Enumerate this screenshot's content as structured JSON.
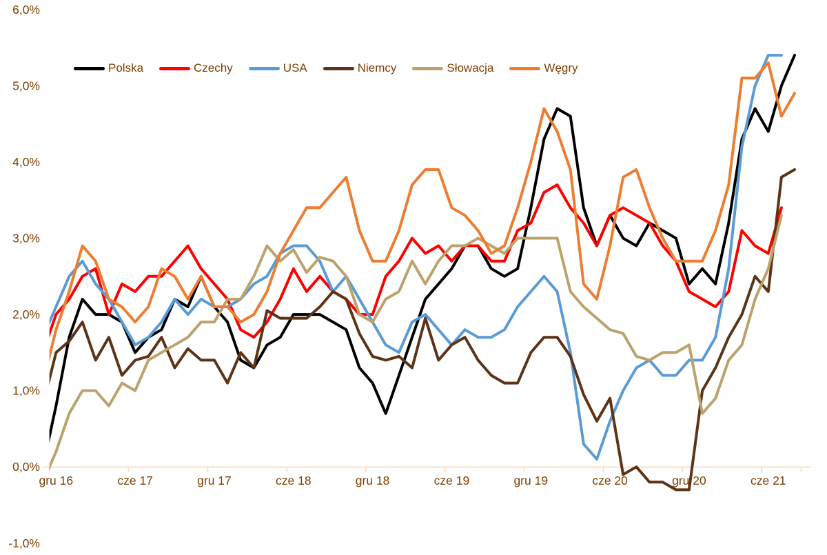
{
  "chart_data": {
    "type": "line",
    "title": "",
    "subtitle": "",
    "unit": "%",
    "grid": "off",
    "background": "#ffffff",
    "legend_position": "top-left-horizontal",
    "y_axis": {
      "min": -1.0,
      "max": 6.0,
      "tick_values": [
        6,
        5,
        4,
        3,
        2,
        1,
        0,
        -1
      ],
      "tick_labels": [
        "6,0%",
        "5,0%",
        "4,0%",
        "3,0%",
        "2,0%",
        "1,0%",
        "0,0%",
        "-1,0%"
      ]
    },
    "x_axis": {
      "tick_labels": [
        "gru 16",
        "cze 17",
        "gru 17",
        "cze 18",
        "gru 18",
        "cze 19",
        "gru 19",
        "cze 20",
        "gru 20",
        "cze 21"
      ],
      "months_per_point": 1,
      "points_per_labelled_tick": 6,
      "first_point_month": "lis 16",
      "last_point_month": "sie 21"
    },
    "series": [
      {
        "id": "polska",
        "name": "Polska",
        "color": "#000000",
        "values": [
          0.0,
          0.8,
          1.7,
          2.2,
          2.0,
          2.0,
          1.9,
          1.5,
          1.7,
          1.8,
          2.2,
          2.1,
          2.5,
          2.1,
          1.9,
          1.4,
          1.3,
          1.6,
          1.7,
          2.0,
          2.0,
          2.0,
          1.9,
          1.8,
          1.3,
          1.1,
          0.7,
          1.2,
          1.7,
          2.2,
          2.4,
          2.6,
          2.9,
          2.9,
          2.6,
          2.5,
          2.6,
          3.4,
          4.3,
          4.7,
          4.6,
          3.4,
          2.9,
          3.3,
          3.0,
          2.9,
          3.2,
          3.1,
          3.0,
          2.4,
          2.6,
          2.4,
          3.2,
          4.3,
          4.7,
          4.4,
          5.0,
          5.4
        ]
      },
      {
        "id": "czechy",
        "name": "Czechy",
        "color": "#FF0000",
        "values": [
          1.5,
          2.0,
          2.2,
          2.5,
          2.6,
          2.0,
          2.4,
          2.3,
          2.5,
          2.5,
          2.7,
          2.9,
          2.6,
          2.4,
          2.2,
          1.8,
          1.7,
          1.9,
          2.2,
          2.6,
          2.3,
          2.5,
          2.3,
          2.2,
          2.0,
          2.0,
          2.5,
          2.7,
          3.0,
          2.8,
          2.9,
          2.7,
          2.9,
          2.9,
          2.7,
          2.7,
          3.1,
          3.2,
          3.6,
          3.7,
          3.4,
          3.2,
          2.9,
          3.3,
          3.4,
          3.3,
          3.2,
          2.9,
          2.7,
          2.3,
          2.2,
          2.1,
          2.3,
          3.1,
          2.9,
          2.8,
          3.4,
          null
        ]
      },
      {
        "id": "usa",
        "name": "USA",
        "color": "#5B9BD5",
        "values": [
          1.7,
          2.1,
          2.5,
          2.7,
          2.4,
          2.2,
          1.9,
          1.6,
          1.7,
          1.9,
          2.2,
          2.0,
          2.2,
          2.1,
          2.1,
          2.2,
          2.4,
          2.5,
          2.8,
          2.9,
          2.9,
          2.7,
          2.3,
          2.5,
          2.2,
          1.9,
          1.6,
          1.5,
          1.9,
          2.0,
          1.8,
          1.6,
          1.8,
          1.7,
          1.7,
          1.8,
          2.1,
          2.3,
          2.5,
          2.3,
          1.5,
          0.3,
          0.1,
          0.6,
          1.0,
          1.3,
          1.4,
          1.2,
          1.2,
          1.4,
          1.4,
          1.7,
          2.6,
          4.2,
          5.0,
          5.4,
          5.4,
          null
        ]
      },
      {
        "id": "niemcy",
        "name": "Niemcy",
        "color": "#5C3317",
        "values": [
          0.8,
          1.5,
          1.65,
          1.9,
          1.4,
          1.7,
          1.2,
          1.4,
          1.45,
          1.7,
          1.3,
          1.55,
          1.4,
          1.4,
          1.1,
          1.5,
          1.3,
          2.05,
          1.95,
          1.95,
          1.95,
          2.1,
          2.3,
          2.2,
          1.75,
          1.45,
          1.4,
          1.45,
          1.3,
          1.95,
          1.4,
          1.6,
          1.7,
          1.4,
          1.2,
          1.1,
          1.1,
          1.5,
          1.7,
          1.7,
          1.45,
          0.95,
          0.6,
          0.9,
          -0.1,
          0.0,
          -0.2,
          -0.2,
          -0.3,
          -0.3,
          1.0,
          1.3,
          1.7,
          2.0,
          2.5,
          2.3,
          3.8,
          3.9
        ]
      },
      {
        "id": "slowacja",
        "name": "Słowacja",
        "color": "#BCA26B",
        "values": [
          -0.2,
          0.2,
          0.7,
          1.0,
          1.0,
          0.8,
          1.1,
          1.0,
          1.4,
          1.5,
          1.6,
          1.7,
          1.9,
          1.9,
          2.2,
          2.2,
          2.5,
          2.9,
          2.7,
          2.85,
          2.55,
          2.75,
          2.7,
          2.5,
          2.0,
          1.9,
          2.2,
          2.3,
          2.7,
          2.4,
          2.7,
          2.9,
          2.9,
          3.0,
          2.9,
          2.8,
          3.0,
          3.0,
          3.0,
          3.0,
          2.3,
          2.1,
          1.95,
          1.8,
          1.75,
          1.45,
          1.4,
          1.5,
          1.5,
          1.6,
          0.7,
          0.9,
          1.4,
          1.6,
          2.2,
          2.6,
          3.3,
          null
        ]
      },
      {
        "id": "wegry",
        "name": "Węgry",
        "color": "#ED7D31",
        "values": [
          1.1,
          1.8,
          2.3,
          2.9,
          2.7,
          2.2,
          2.1,
          1.9,
          2.1,
          2.6,
          2.5,
          2.2,
          2.5,
          2.1,
          2.1,
          1.9,
          2.0,
          2.3,
          2.8,
          3.1,
          3.4,
          3.4,
          3.6,
          3.8,
          3.1,
          2.7,
          2.7,
          3.1,
          3.7,
          3.9,
          3.9,
          3.4,
          3.3,
          3.1,
          2.8,
          2.9,
          3.4,
          4.0,
          4.7,
          4.4,
          3.9,
          2.4,
          2.2,
          2.9,
          3.8,
          3.9,
          3.4,
          3.0,
          2.7,
          2.7,
          2.7,
          3.1,
          3.7,
          5.1,
          5.1,
          5.3,
          4.6,
          4.9
        ]
      }
    ]
  },
  "style": {
    "axis_text_color": "#7F3F00",
    "axis_line_color": "#F8E0C8",
    "line_width": 4,
    "legend_text_color": "#7F3F00"
  }
}
